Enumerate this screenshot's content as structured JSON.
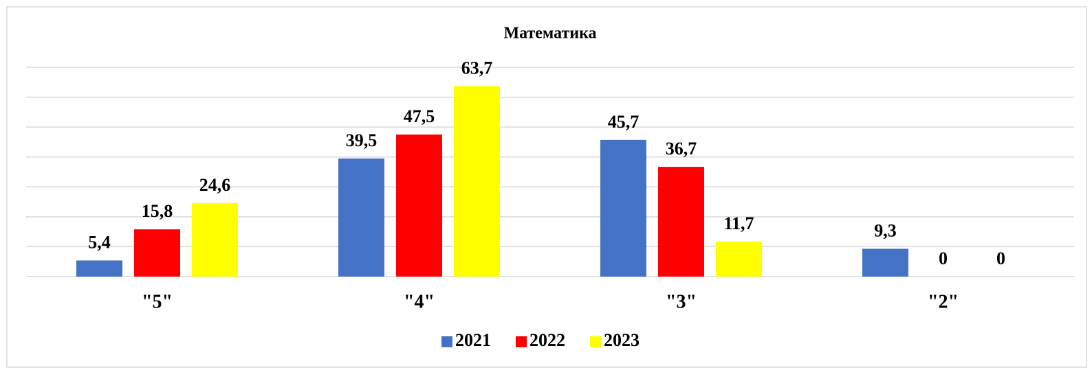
{
  "chart_data": {
    "type": "bar",
    "title": "Математика",
    "categories": [
      "\"5\"",
      "\"4\"",
      "\"3\"",
      "\"2\""
    ],
    "series": [
      {
        "name": "2021",
        "color": "#4472c4",
        "values": [
          5.4,
          39.5,
          45.7,
          9.3
        ],
        "value_labels": [
          "5,4",
          "39,5",
          "45,7",
          "9,3"
        ]
      },
      {
        "name": "2022",
        "color": "#ff0000",
        "values": [
          15.8,
          47.5,
          36.7,
          0
        ],
        "value_labels": [
          "15,8",
          "47,5",
          "36,7",
          "0"
        ]
      },
      {
        "name": "2023",
        "color": "#ffff00",
        "values": [
          24.6,
          63.7,
          11.7,
          0
        ],
        "value_labels": [
          "24,6",
          "63,7",
          "11,7",
          "0"
        ]
      }
    ],
    "ylim": [
      0,
      70
    ],
    "yticks": [
      0,
      10,
      20,
      30,
      40,
      50,
      60,
      70
    ],
    "grid": true,
    "legend": "bottom"
  }
}
